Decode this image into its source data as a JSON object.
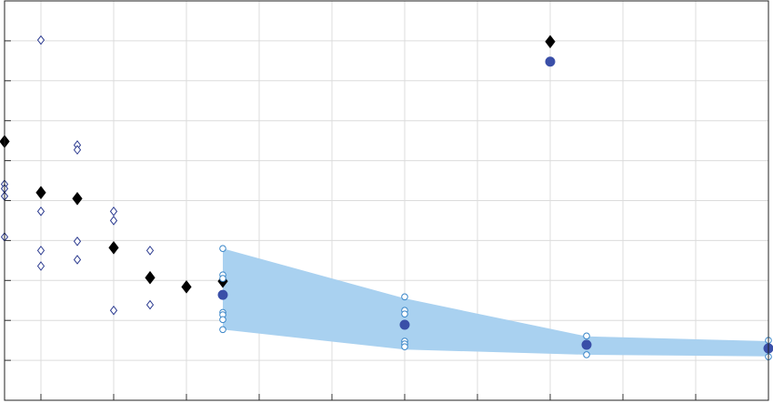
{
  "chart_data": {
    "type": "scatter",
    "grid": true,
    "xlim": [
      0,
      10.5
    ],
    "ylim": [
      0,
      10
    ],
    "xticks": [
      0.5,
      1.5,
      2.5,
      3.5,
      4.5,
      5.5,
      6.5,
      7.5,
      8.5,
      9.5
    ],
    "yticks": [
      1,
      2,
      3,
      4,
      5,
      6,
      7,
      8,
      9
    ],
    "band": {
      "color": "#a9d1f0",
      "x": [
        3,
        5.5,
        8,
        10.5
      ],
      "upper": [
        3.8,
        2.55,
        1.6,
        1.48
      ],
      "lower": [
        1.77,
        1.27,
        1.14,
        1.1
      ]
    },
    "series": [
      {
        "marker": "diamond",
        "filled": false,
        "color": "#2b3a8f",
        "x": [
          0,
          0,
          0,
          0,
          0.5,
          0.5,
          0.5,
          0.5,
          1,
          1,
          1,
          1,
          1.5,
          1.5,
          1.5,
          2,
          2
        ],
        "values": [
          5.41,
          5.3,
          5.11,
          4.09,
          9.02,
          4.73,
          3.75,
          3.36,
          6.39,
          6.27,
          3.98,
          3.52,
          4.73,
          4.5,
          2.25,
          3.75,
          2.39
        ]
      },
      {
        "marker": "diamond",
        "filled": true,
        "color": "#000000",
        "x": [
          0,
          0.5,
          1,
          1.5,
          2,
          2.5,
          3,
          7.5
        ],
        "values": [
          6.48,
          5.2,
          5.05,
          3.82,
          3.07,
          2.84,
          2.98,
          8.98
        ]
      },
      {
        "marker": "circle",
        "filled": false,
        "color": "#3a86c8",
        "x": [
          3,
          3,
          3,
          3,
          3,
          3,
          3,
          5.5,
          5.5,
          5.5,
          5.5,
          5.5,
          5.5,
          8,
          8,
          10.5,
          10.5
        ],
        "values": [
          3.8,
          3.14,
          3.05,
          2.2,
          2.14,
          2.02,
          1.77,
          2.59,
          2.25,
          2.16,
          1.48,
          1.41,
          1.34,
          1.61,
          1.14,
          1.5,
          1.09
        ]
      },
      {
        "marker": "circle",
        "filled": true,
        "color": "#3a4fa8",
        "x": [
          3,
          5.5,
          8,
          10.5,
          7.5
        ],
        "values": [
          2.64,
          1.89,
          1.39,
          1.3,
          8.48
        ]
      }
    ]
  }
}
